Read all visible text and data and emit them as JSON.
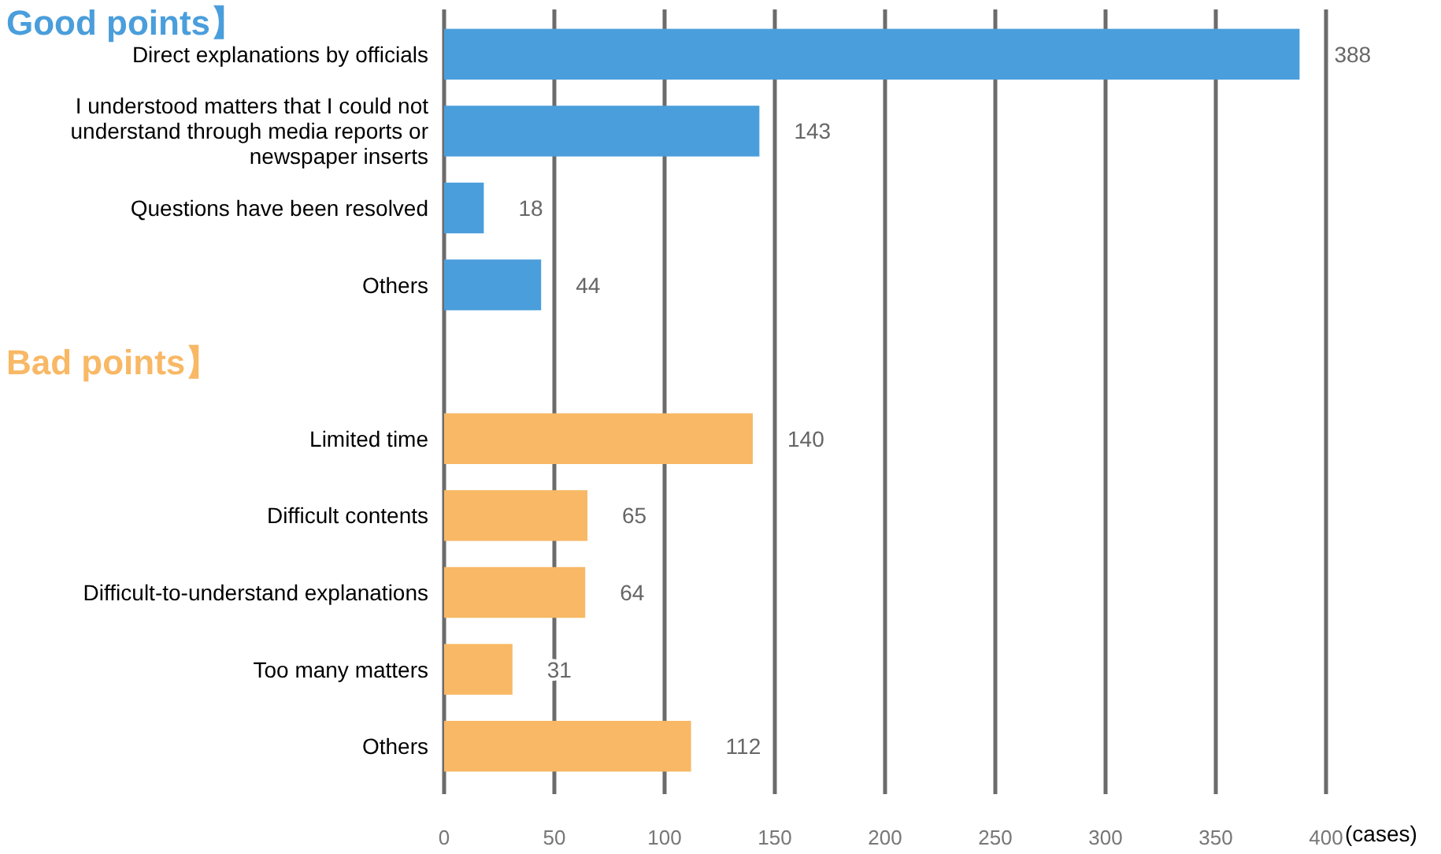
{
  "chart_data": {
    "type": "bar",
    "orientation": "horizontal",
    "categories": [
      "Direct explanations by officials",
      "I understood matters that I could not understand through media reports or newspaper inserts",
      "Questions have been resolved",
      "Others",
      null,
      "Limited time",
      "Difficult contents",
      "Difficult-to-understand explanations",
      "Too many matters",
      "Others"
    ],
    "values": [
      388,
      143,
      18,
      44,
      null,
      140,
      65,
      64,
      31,
      112
    ],
    "colors": [
      "#4a9edb",
      "#4a9edb",
      "#4a9edb",
      "#4a9edb",
      null,
      "#f8b865",
      "#f8b865",
      "#f8b865",
      "#f8b865",
      "#f8b865"
    ],
    "xlim": [
      0,
      400
    ],
    "xticks": [
      0,
      50,
      100,
      150,
      200,
      250,
      300,
      350,
      400
    ],
    "xlabel": "(cases)",
    "grid": "x",
    "data_labels": true,
    "annotations": [
      "Good points】",
      "Bad points】"
    ]
  }
}
